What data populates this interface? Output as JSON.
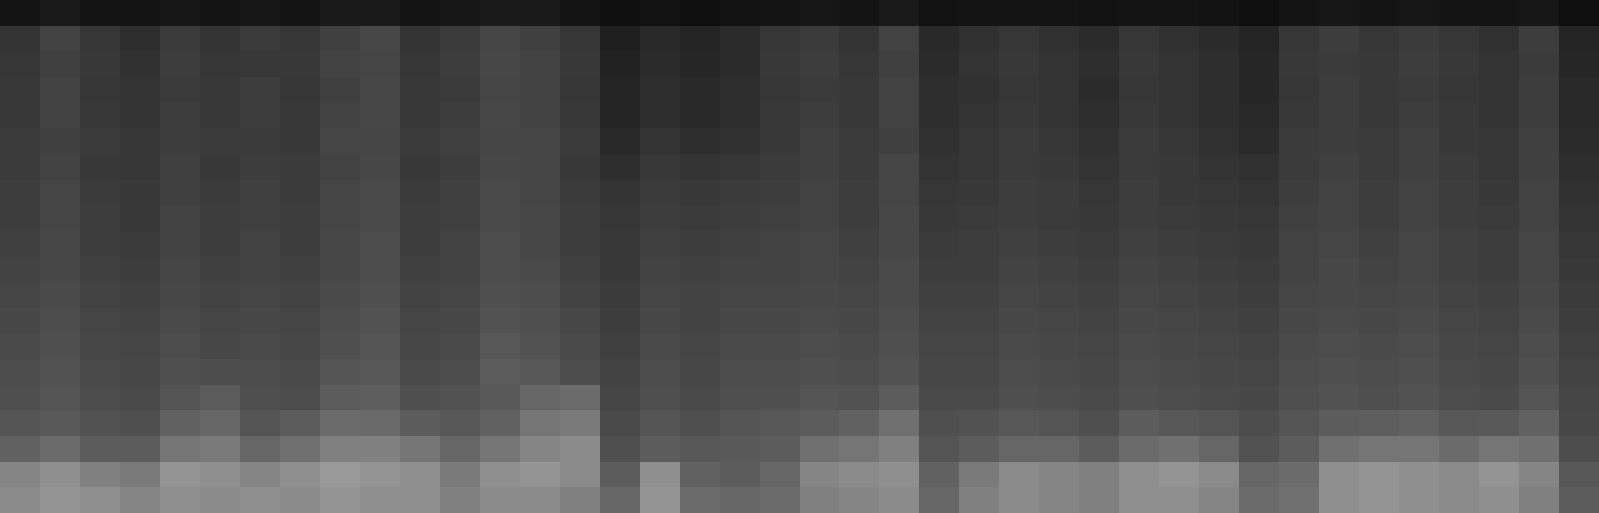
{
  "chart_data": {
    "type": "heatmap",
    "tick_labels": false,
    "zlim": [
      0,
      100
    ],
    "cells": [
      [
        8,
        10,
        8,
        8,
        9,
        8,
        9,
        8,
        10,
        10,
        8,
        9,
        10,
        10,
        8,
        6,
        7,
        6,
        7,
        8,
        9,
        8,
        10,
        7,
        8,
        8,
        8,
        7,
        8,
        8,
        7,
        6,
        8,
        9,
        8,
        9,
        8,
        8,
        9,
        6
      ],
      [
        20,
        26,
        21,
        18,
        23,
        20,
        23,
        21,
        25,
        28,
        20,
        23,
        27,
        25,
        21,
        12,
        16,
        14,
        17,
        21,
        23,
        20,
        26,
        16,
        19,
        21,
        19,
        17,
        21,
        19,
        17,
        14,
        21,
        24,
        21,
        23,
        21,
        19,
        24,
        14
      ],
      [
        21,
        25,
        22,
        19,
        24,
        21,
        22,
        22,
        26,
        27,
        21,
        24,
        28,
        26,
        22,
        13,
        17,
        15,
        17,
        22,
        24,
        21,
        25,
        17,
        20,
        22,
        20,
        18,
        22,
        20,
        18,
        15,
        22,
        23,
        22,
        24,
        22,
        20,
        23,
        15
      ],
      [
        22,
        26,
        21,
        20,
        23,
        22,
        24,
        21,
        25,
        28,
        22,
        23,
        27,
        26,
        21,
        14,
        18,
        16,
        18,
        21,
        23,
        22,
        26,
        18,
        19,
        21,
        20,
        17,
        21,
        20,
        18,
        15,
        21,
        24,
        22,
        23,
        21,
        20,
        24,
        16
      ],
      [
        22,
        26,
        22,
        20,
        24,
        22,
        24,
        22,
        26,
        28,
        22,
        24,
        28,
        26,
        22,
        14,
        18,
        16,
        18,
        22,
        24,
        22,
        26,
        18,
        20,
        22,
        20,
        18,
        22,
        20,
        18,
        16,
        22,
        24,
        22,
        24,
        22,
        20,
        24,
        16
      ],
      [
        23,
        25,
        23,
        21,
        24,
        23,
        23,
        22,
        27,
        27,
        23,
        25,
        27,
        27,
        23,
        16,
        20,
        18,
        19,
        22,
        25,
        23,
        25,
        19,
        21,
        23,
        21,
        19,
        23,
        21,
        19,
        17,
        23,
        24,
        23,
        25,
        22,
        21,
        25,
        17
      ],
      [
        23,
        26,
        22,
        21,
        25,
        22,
        24,
        23,
        26,
        28,
        22,
        24,
        28,
        27,
        22,
        18,
        22,
        20,
        21,
        23,
        25,
        23,
        27,
        20,
        21,
        23,
        22,
        20,
        23,
        22,
        20,
        19,
        23,
        25,
        23,
        25,
        23,
        21,
        25,
        18
      ],
      [
        24,
        27,
        23,
        22,
        25,
        23,
        25,
        23,
        27,
        29,
        23,
        25,
        29,
        27,
        23,
        20,
        23,
        22,
        23,
        24,
        26,
        24,
        27,
        21,
        22,
        24,
        23,
        21,
        24,
        22,
        21,
        20,
        24,
        26,
        24,
        26,
        24,
        22,
        26,
        19
      ],
      [
        24,
        27,
        24,
        22,
        26,
        24,
        25,
        24,
        27,
        29,
        24,
        25,
        29,
        28,
        24,
        21,
        24,
        23,
        24,
        25,
        26,
        24,
        28,
        22,
        23,
        24,
        23,
        22,
        24,
        23,
        22,
        21,
        25,
        26,
        24,
        26,
        24,
        23,
        26,
        20
      ],
      [
        25,
        28,
        24,
        23,
        26,
        24,
        26,
        24,
        28,
        30,
        24,
        26,
        30,
        28,
        24,
        22,
        25,
        24,
        25,
        26,
        27,
        25,
        28,
        23,
        24,
        25,
        24,
        23,
        25,
        24,
        23,
        22,
        26,
        27,
        25,
        27,
        25,
        24,
        27,
        21
      ],
      [
        26,
        28,
        25,
        24,
        27,
        25,
        26,
        25,
        28,
        30,
        25,
        26,
        30,
        29,
        25,
        22,
        26,
        25,
        26,
        26,
        27,
        26,
        29,
        24,
        24,
        26,
        25,
        24,
        26,
        25,
        24,
        23,
        26,
        28,
        26,
        27,
        25,
        24,
        27,
        22
      ],
      [
        27,
        29,
        26,
        25,
        28,
        26,
        27,
        26,
        29,
        31,
        26,
        27,
        31,
        30,
        26,
        23,
        27,
        26,
        27,
        27,
        28,
        27,
        29,
        25,
        25,
        27,
        26,
        25,
        27,
        26,
        25,
        24,
        27,
        28,
        27,
        28,
        26,
        25,
        28,
        23
      ],
      [
        28,
        30,
        27,
        26,
        29,
        27,
        28,
        27,
        30,
        32,
        27,
        28,
        32,
        31,
        28,
        24,
        28,
        26,
        28,
        28,
        29,
        28,
        30,
        26,
        26,
        28,
        27,
        26,
        28,
        27,
        26,
        25,
        28,
        29,
        28,
        29,
        27,
        26,
        29,
        24
      ],
      [
        29,
        31,
        28,
        27,
        30,
        28,
        29,
        28,
        31,
        33,
        28,
        29,
        34,
        32,
        29,
        25,
        29,
        27,
        29,
        29,
        30,
        29,
        31,
        27,
        27,
        29,
        28,
        27,
        29,
        28,
        27,
        26,
        29,
        30,
        29,
        30,
        28,
        27,
        30,
        25
      ],
      [
        30,
        32,
        29,
        28,
        31,
        30,
        30,
        29,
        33,
        34,
        29,
        30,
        36,
        34,
        30,
        26,
        30,
        28,
        30,
        30,
        31,
        30,
        32,
        28,
        28,
        30,
        29,
        28,
        30,
        29,
        28,
        27,
        30,
        31,
        30,
        31,
        29,
        28,
        31,
        26
      ],
      [
        31,
        33,
        30,
        29,
        33,
        36,
        31,
        30,
        36,
        37,
        31,
        32,
        35,
        40,
        42,
        27,
        31,
        29,
        31,
        31,
        33,
        32,
        36,
        29,
        29,
        31,
        30,
        29,
        31,
        30,
        29,
        28,
        31,
        32,
        31,
        32,
        30,
        29,
        33,
        27
      ],
      [
        33,
        35,
        32,
        31,
        38,
        40,
        33,
        36,
        42,
        41,
        36,
        34,
        38,
        46,
        48,
        29,
        33,
        31,
        33,
        34,
        36,
        38,
        44,
        31,
        32,
        34,
        33,
        31,
        36,
        34,
        33,
        30,
        33,
        36,
        37,
        38,
        34,
        35,
        38,
        28
      ],
      [
        38,
        42,
        36,
        36,
        46,
        48,
        40,
        44,
        50,
        50,
        46,
        40,
        46,
        52,
        54,
        31,
        36,
        34,
        35,
        36,
        44,
        46,
        50,
        33,
        36,
        40,
        40,
        36,
        42,
        44,
        40,
        32,
        36,
        44,
        46,
        46,
        42,
        46,
        44,
        30
      ],
      [
        52,
        56,
        50,
        48,
        58,
        56,
        52,
        56,
        60,
        58,
        56,
        48,
        56,
        58,
        54,
        36,
        56,
        38,
        36,
        40,
        52,
        54,
        56,
        38,
        48,
        54,
        52,
        50,
        56,
        58,
        54,
        40,
        42,
        56,
        58,
        56,
        54,
        58,
        52,
        34
      ],
      [
        54,
        58,
        56,
        52,
        56,
        54,
        56,
        54,
        58,
        56,
        56,
        50,
        54,
        54,
        50,
        40,
        58,
        42,
        40,
        42,
        50,
        52,
        54,
        40,
        50,
        54,
        52,
        50,
        56,
        56,
        52,
        42,
        44,
        56,
        58,
        56,
        54,
        56,
        50,
        36
      ]
    ]
  }
}
